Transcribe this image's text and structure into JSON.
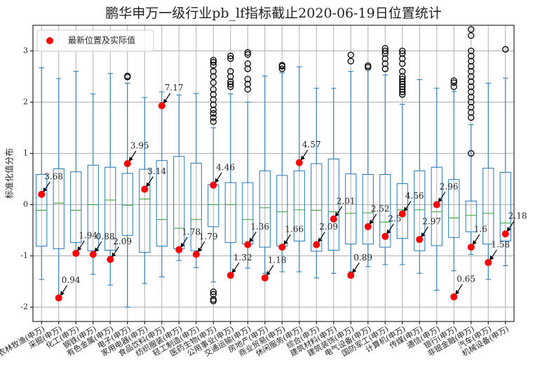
{
  "chart_data": {
    "type": "box",
    "title": "鹏华申万一级行业pb_lf指标截止2020-06-19日位置统计",
    "y_label": "标准化值分布",
    "categories": [
      "农林牧渔(申万)",
      "采掘(申万)",
      "化工(申万)",
      "钢铁(申万)",
      "有色金属(申万)",
      "电子(申万)",
      "家用电器(申万)",
      "食品饮料(申万)",
      "纺织服装(申万)",
      "轻工制造(申万)",
      "医药生物(申万)",
      "公用事业(申万)",
      "交通运输(申万)",
      "房地产(申万)",
      "商业贸易(申万)",
      "休闲服务(申万)",
      "综合(申万)",
      "建筑材料(申万)",
      "建筑装饰(申万)",
      "电气设备(申万)",
      "国防军工(申万)",
      "计算机(申万)",
      "传媒(申万)",
      "通信(申万)",
      "银行(申万)",
      "非银金融(申万)",
      "汽车(申万)",
      "机械设备(申万)"
    ],
    "boxes": [
      {
        "whislo": -1.46,
        "q1": -0.81,
        "median": -0.11,
        "q3": 0.59,
        "whishi": 2.67,
        "fliers": []
      },
      {
        "whislo": -1.8,
        "q1": -0.86,
        "median": 0.03,
        "q3": 0.7,
        "whishi": 2.46,
        "fliers": []
      },
      {
        "whislo": -1.0,
        "q1": -0.74,
        "median": -0.11,
        "q3": 0.64,
        "whishi": 2.6,
        "fliers": []
      },
      {
        "whislo": -1.36,
        "q1": -0.9,
        "median": 0.0,
        "q3": 0.77,
        "whishi": 2.16,
        "fliers": []
      },
      {
        "whislo": -1.57,
        "q1": -0.89,
        "median": 0.09,
        "q3": 0.73,
        "whishi": 2.56,
        "fliers": []
      },
      {
        "whislo": -2.0,
        "q1": -0.6,
        "median": -0.01,
        "q3": 0.61,
        "whishi": 2.37,
        "fliers": [
          2.49,
          2.51
        ]
      },
      {
        "whislo": -1.54,
        "q1": -0.93,
        "median": 0.11,
        "q3": 0.69,
        "whishi": 2.09,
        "fliers": []
      },
      {
        "whislo": -1.41,
        "q1": -0.81,
        "median": -0.29,
        "q3": 0.86,
        "whishi": 2.2,
        "fliers": []
      },
      {
        "whislo": -1.09,
        "q1": -0.86,
        "median": -0.46,
        "q3": 0.94,
        "whishi": 2.14,
        "fliers": []
      },
      {
        "whislo": -1.23,
        "q1": -0.9,
        "median": -0.29,
        "q3": 0.81,
        "whishi": 2.17,
        "fliers": []
      },
      {
        "whislo": -1.51,
        "q1": -0.43,
        "median": 0.0,
        "q3": 0.39,
        "whishi": 1.5,
        "fliers": [
          2.82,
          2.78,
          2.72,
          2.6,
          2.5,
          2.38,
          2.25,
          2.15,
          2.05,
          1.95,
          1.85,
          1.78,
          1.7,
          1.62,
          -1.7,
          -1.75,
          -1.85,
          -1.88
        ]
      },
      {
        "whislo": -1.36,
        "q1": -0.74,
        "median": 0.0,
        "q3": 0.43,
        "whishi": 2.16,
        "fliers": [
          2.9,
          2.85,
          2.6,
          2.5,
          2.4,
          2.35,
          2.3
        ]
      },
      {
        "whislo": -1.24,
        "q1": -0.77,
        "median": -0.29,
        "q3": 0.43,
        "whishi": 2.0,
        "fliers": [
          2.97,
          2.93,
          2.75,
          2.65,
          2.45,
          2.35,
          2.25
        ]
      },
      {
        "whislo": -1.34,
        "q1": -0.83,
        "median": -0.06,
        "q3": 0.66,
        "whishi": 2.51,
        "fliers": []
      },
      {
        "whislo": -1.31,
        "q1": -0.81,
        "median": -0.14,
        "q3": 0.57,
        "whishi": 2.57,
        "fliers": [
          2.72,
          2.7,
          2.65
        ]
      },
      {
        "whislo": -1.31,
        "q1": -0.71,
        "median": -0.1,
        "q3": 0.66,
        "whishi": 2.69,
        "fliers": []
      },
      {
        "whislo": -1.43,
        "q1": -0.91,
        "median": -0.11,
        "q3": 0.8,
        "whishi": 2.27,
        "fliers": []
      },
      {
        "whislo": -1.34,
        "q1": -0.89,
        "median": -0.14,
        "q3": 0.89,
        "whishi": 2.27,
        "fliers": []
      },
      {
        "whislo": -1.31,
        "q1": -0.77,
        "median": -0.17,
        "q3": 0.6,
        "whishi": 2.6,
        "fliers": [
          2.92,
          2.8
        ]
      },
      {
        "whislo": -1.21,
        "q1": -0.77,
        "median": -0.16,
        "q3": 0.59,
        "whishi": 2.63,
        "fliers": [
          2.71,
          2.68
        ]
      },
      {
        "whislo": -1.17,
        "q1": -0.83,
        "median": -0.34,
        "q3": 0.59,
        "whishi": 2.53,
        "fliers": [
          3.05,
          3.0,
          2.95,
          2.85,
          2.75,
          2.65
        ]
      },
      {
        "whislo": -1.17,
        "q1": -0.66,
        "median": -0.1,
        "q3": 0.41,
        "whishi": 1.96,
        "fliers": [
          3.0,
          2.95,
          2.85,
          2.75,
          2.6,
          2.5,
          2.45,
          2.4,
          2.35,
          2.3,
          2.25,
          2.2,
          2.15
        ]
      },
      {
        "whislo": -1.34,
        "q1": -0.9,
        "median": -0.1,
        "q3": 0.66,
        "whishi": 2.44,
        "fliers": []
      },
      {
        "whislo": -1.67,
        "q1": -0.8,
        "median": -0.14,
        "q3": 0.73,
        "whishi": 2.27,
        "fliers": []
      },
      {
        "whislo": -1.29,
        "q1": -0.64,
        "median": -0.26,
        "q3": 0.49,
        "whishi": 2.21,
        "fliers": [
          2.42,
          2.38,
          2.3
        ]
      },
      {
        "whislo": -0.97,
        "q1": -0.53,
        "median": -0.21,
        "q3": 0.07,
        "whishi": 1.56,
        "fliers": [
          3.42,
          3.3,
          3.0,
          2.9,
          2.8,
          2.7,
          2.6,
          2.5,
          2.4,
          2.3,
          2.2,
          2.1,
          2.0,
          1.9,
          1.8,
          1.7,
          1.0
        ]
      },
      {
        "whislo": -1.46,
        "q1": -0.77,
        "median": -0.17,
        "q3": 0.71,
        "whishi": 2.37,
        "fliers": []
      },
      {
        "whislo": -1.19,
        "q1": -0.71,
        "median": -0.36,
        "q3": 0.63,
        "whishi": 2.47,
        "fliers": [
          3.03
        ]
      }
    ],
    "box_color": "#1f77b4",
    "median_color": "#2ca02c",
    "flier_color": "#000000",
    "points": {
      "name": "最新位置及实际值",
      "color": "#ff0000",
      "values": [
        0.2,
        -1.82,
        -0.95,
        -0.97,
        -1.07,
        0.8,
        0.3,
        1.93,
        -0.88,
        -0.97,
        0.38,
        -1.38,
        -0.78,
        -1.43,
        -0.83,
        0.82,
        -0.78,
        -0.28,
        -1.38,
        -0.43,
        -0.62,
        -0.18,
        -0.68,
        0.0,
        -1.8,
        -0.83,
        -1.13,
        -0.57
      ]
    },
    "actual_values": [
      3.68,
      0.94,
      1.94,
      0.88,
      2.09,
      3.95,
      3.14,
      7.17,
      1.78,
      1.79,
      4.46,
      1.32,
      1.36,
      1.18,
      1.66,
      4.57,
      2.09,
      2.01,
      0.89,
      2.52,
      2.5,
      4.56,
      2.97,
      2.96,
      0.65,
      1.6,
      1.58,
      2.18
    ],
    "ylim": [
      -2.28,
      3.5
    ],
    "yticks": [
      -2,
      -1,
      0,
      1,
      2,
      3
    ],
    "grid": true,
    "legend": "upper left"
  }
}
